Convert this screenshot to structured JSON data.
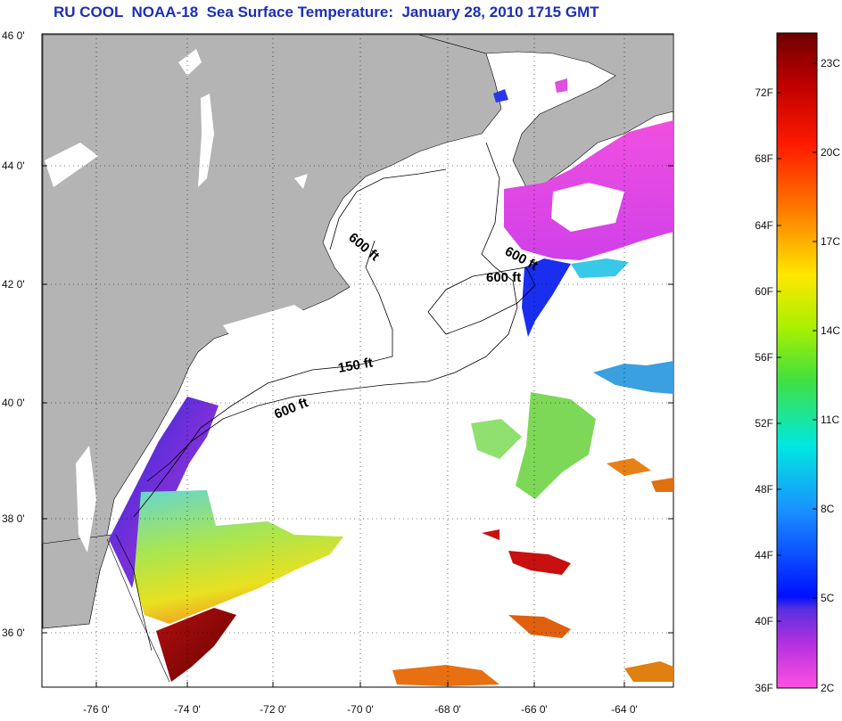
{
  "title": "RU COOL  NOAA-18  Sea Surface Temperature:  January 28, 2010 1715 GMT",
  "lat_labels": [
    "46 0'",
    "44 0'",
    "42 0'",
    "40 0'",
    "38 0'",
    "36 0'"
  ],
  "lon_labels": [
    "-76 0'",
    "-74 0'",
    "-72 0'",
    "-70 0'",
    "-68 0'",
    "-66 0'",
    "-64 0'"
  ],
  "contour_labels": [
    "600 ft",
    "600 ft",
    "600 ft",
    "150 ft",
    "600 ft"
  ],
  "colorbar": {
    "fahrenheit": [
      "72F",
      "68F",
      "64F",
      "60F",
      "56F",
      "52F",
      "48F",
      "44F",
      "40F",
      "36F"
    ],
    "celsius": [
      "23C",
      "20C",
      "17C",
      "14C",
      "11C",
      "8C",
      "5C",
      "2C"
    ]
  },
  "colors": {
    "land": "#b4b4b4",
    "water": "#ffffff",
    "title": "#1c2fb4"
  }
}
